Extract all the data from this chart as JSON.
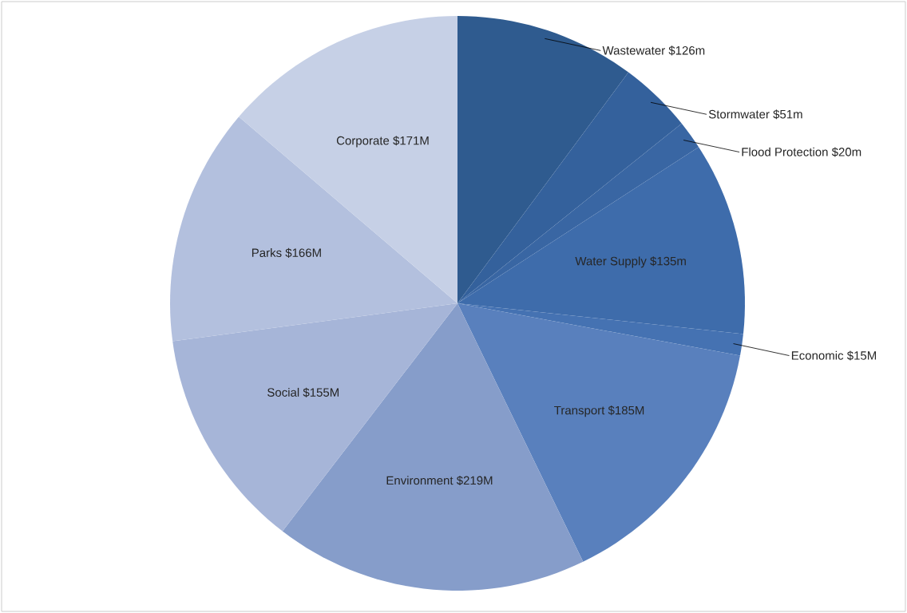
{
  "chart_data": {
    "type": "pie",
    "categories": [
      "Wastewater",
      "Stormwater",
      "Flood Protection",
      "Water Supply",
      "Economic",
      "Transport",
      "Environment",
      "Social",
      "Parks",
      "Corporate"
    ],
    "values": [
      126,
      51,
      20,
      135,
      15,
      185,
      219,
      155,
      166,
      171
    ],
    "value_labels": [
      "$126m",
      "$51m",
      "$20m",
      "$135m",
      "$15M",
      "$185M",
      "$219M",
      "$155M",
      "$166M",
      "$171M"
    ],
    "colors": [
      "#2f5b8f",
      "#34619c",
      "#3966a3",
      "#3e6cab",
      "#4572b2",
      "#5980bd",
      "#869dca",
      "#a6b5d8",
      "#b3c0de",
      "#c6d0e6"
    ]
  }
}
